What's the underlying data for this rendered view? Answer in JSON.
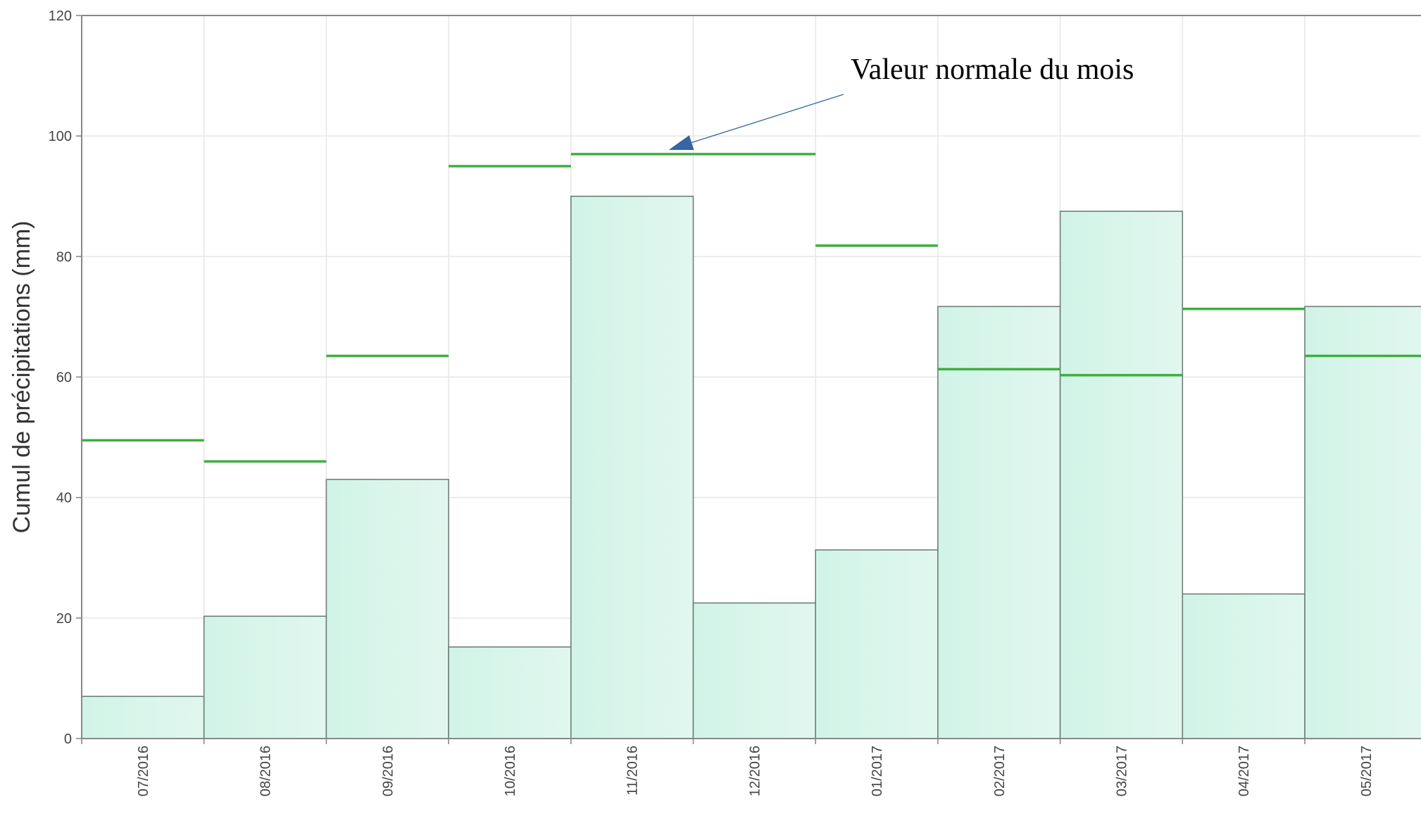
{
  "chart_data": {
    "type": "bar",
    "title": "",
    "xlabel": "",
    "ylabel": "Cumul de précipitations (mm)",
    "ylim": [
      0,
      120
    ],
    "yticks": [
      0,
      20,
      40,
      60,
      80,
      100,
      120
    ],
    "categories": [
      "07/2016",
      "08/2016",
      "09/2016",
      "10/2016",
      "11/2016",
      "12/2016",
      "01/2017",
      "02/2017",
      "03/2017",
      "04/2017",
      "05/2017"
    ],
    "series": [
      {
        "values": [
          7,
          20.3,
          43,
          15.2,
          90,
          22.5,
          31.3,
          71.7,
          87.5,
          24,
          71.7
        ]
      },
      {
        "values": [
          49.5,
          46,
          63.5,
          95,
          97,
          97,
          81.8,
          61.3,
          60.3,
          71.3,
          63.5
        ]
      }
    ],
    "grid": true,
    "annotation": {
      "text": "Valeur normale du mois",
      "target_category_index": 4
    },
    "colors": {
      "bar_fill": "#d1f4e7",
      "bar_fill_edge": "#e1f7ef",
      "bar_stroke": "#6f7f7a",
      "normal_line": "#3fae3f",
      "arrow": "#3465a4",
      "axis": "#888888"
    }
  }
}
